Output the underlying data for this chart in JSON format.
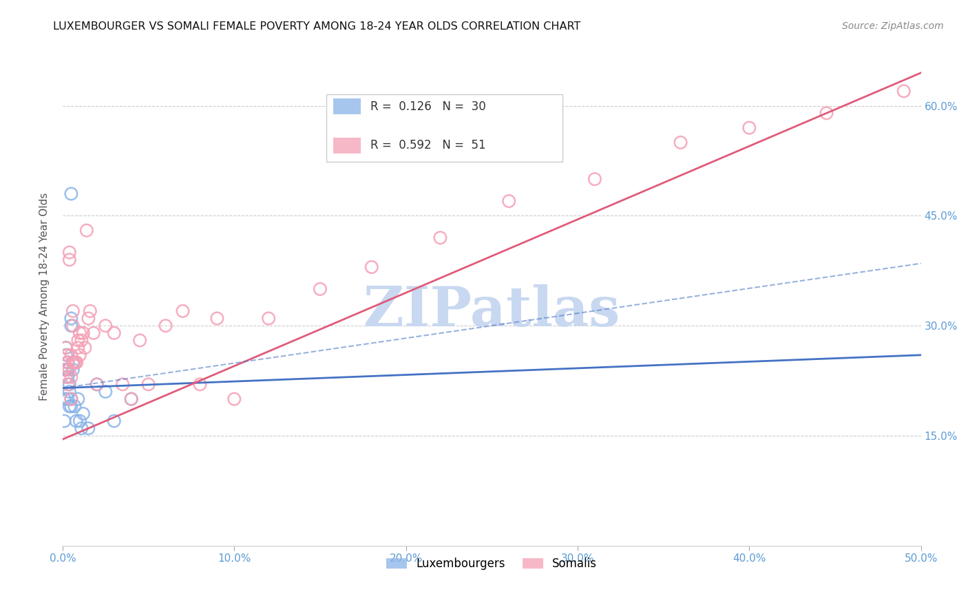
{
  "title": "LUXEMBOURGER VS SOMALI FEMALE POVERTY AMONG 18-24 YEAR OLDS CORRELATION CHART",
  "source": "Source: ZipAtlas.com",
  "ylabel": "Female Poverty Among 18-24 Year Olds",
  "xlim": [
    0,
    0.5
  ],
  "ylim": [
    0,
    0.68
  ],
  "legend_lux": "Luxembourgers",
  "legend_som": "Somalis",
  "R_lux": "0.126",
  "N_lux": "30",
  "R_som": "0.592",
  "N_som": "51",
  "color_lux": "#8ab4e8",
  "color_som": "#f4a0b5",
  "color_lux_line": "#4472c4",
  "color_som_line": "#e05a7a",
  "watermark": "ZIPatlas",
  "watermark_color": "#c8d8f0",
  "lux_x": [
    0.001,
    0.001,
    0.002,
    0.002,
    0.002,
    0.003,
    0.003,
    0.003,
    0.003,
    0.004,
    0.004,
    0.004,
    0.005,
    0.005,
    0.005,
    0.005,
    0.006,
    0.006,
    0.007,
    0.008,
    0.009,
    0.01,
    0.011,
    0.012,
    0.015,
    0.02,
    0.025,
    0.03,
    0.04,
    0.005
  ],
  "lux_y": [
    0.2,
    0.17,
    0.27,
    0.26,
    0.24,
    0.25,
    0.24,
    0.23,
    0.2,
    0.22,
    0.21,
    0.19,
    0.31,
    0.3,
    0.2,
    0.19,
    0.25,
    0.24,
    0.19,
    0.17,
    0.2,
    0.17,
    0.16,
    0.18,
    0.16,
    0.22,
    0.21,
    0.17,
    0.2,
    0.48
  ],
  "som_x": [
    0.001,
    0.002,
    0.002,
    0.003,
    0.003,
    0.003,
    0.004,
    0.004,
    0.004,
    0.005,
    0.005,
    0.005,
    0.006,
    0.006,
    0.006,
    0.007,
    0.008,
    0.008,
    0.009,
    0.009,
    0.01,
    0.01,
    0.011,
    0.012,
    0.013,
    0.014,
    0.015,
    0.016,
    0.018,
    0.02,
    0.025,
    0.03,
    0.035,
    0.04,
    0.045,
    0.05,
    0.06,
    0.07,
    0.08,
    0.09,
    0.1,
    0.12,
    0.15,
    0.18,
    0.22,
    0.26,
    0.31,
    0.36,
    0.4,
    0.445,
    0.49
  ],
  "som_y": [
    0.24,
    0.27,
    0.23,
    0.26,
    0.25,
    0.22,
    0.4,
    0.39,
    0.24,
    0.26,
    0.23,
    0.2,
    0.32,
    0.3,
    0.25,
    0.25,
    0.25,
    0.25,
    0.28,
    0.27,
    0.26,
    0.29,
    0.28,
    0.29,
    0.27,
    0.43,
    0.31,
    0.32,
    0.29,
    0.22,
    0.3,
    0.29,
    0.22,
    0.2,
    0.28,
    0.22,
    0.3,
    0.32,
    0.22,
    0.31,
    0.2,
    0.31,
    0.35,
    0.38,
    0.42,
    0.47,
    0.5,
    0.55,
    0.57,
    0.59,
    0.62
  ],
  "lux_line_x": [
    0.0,
    0.5
  ],
  "lux_line_y": [
    0.215,
    0.26
  ],
  "som_line_x": [
    0.0,
    0.5
  ],
  "som_line_y": [
    0.145,
    0.645
  ],
  "dash_line_x": [
    0.0,
    0.5
  ],
  "dash_line_y": [
    0.215,
    0.385
  ]
}
